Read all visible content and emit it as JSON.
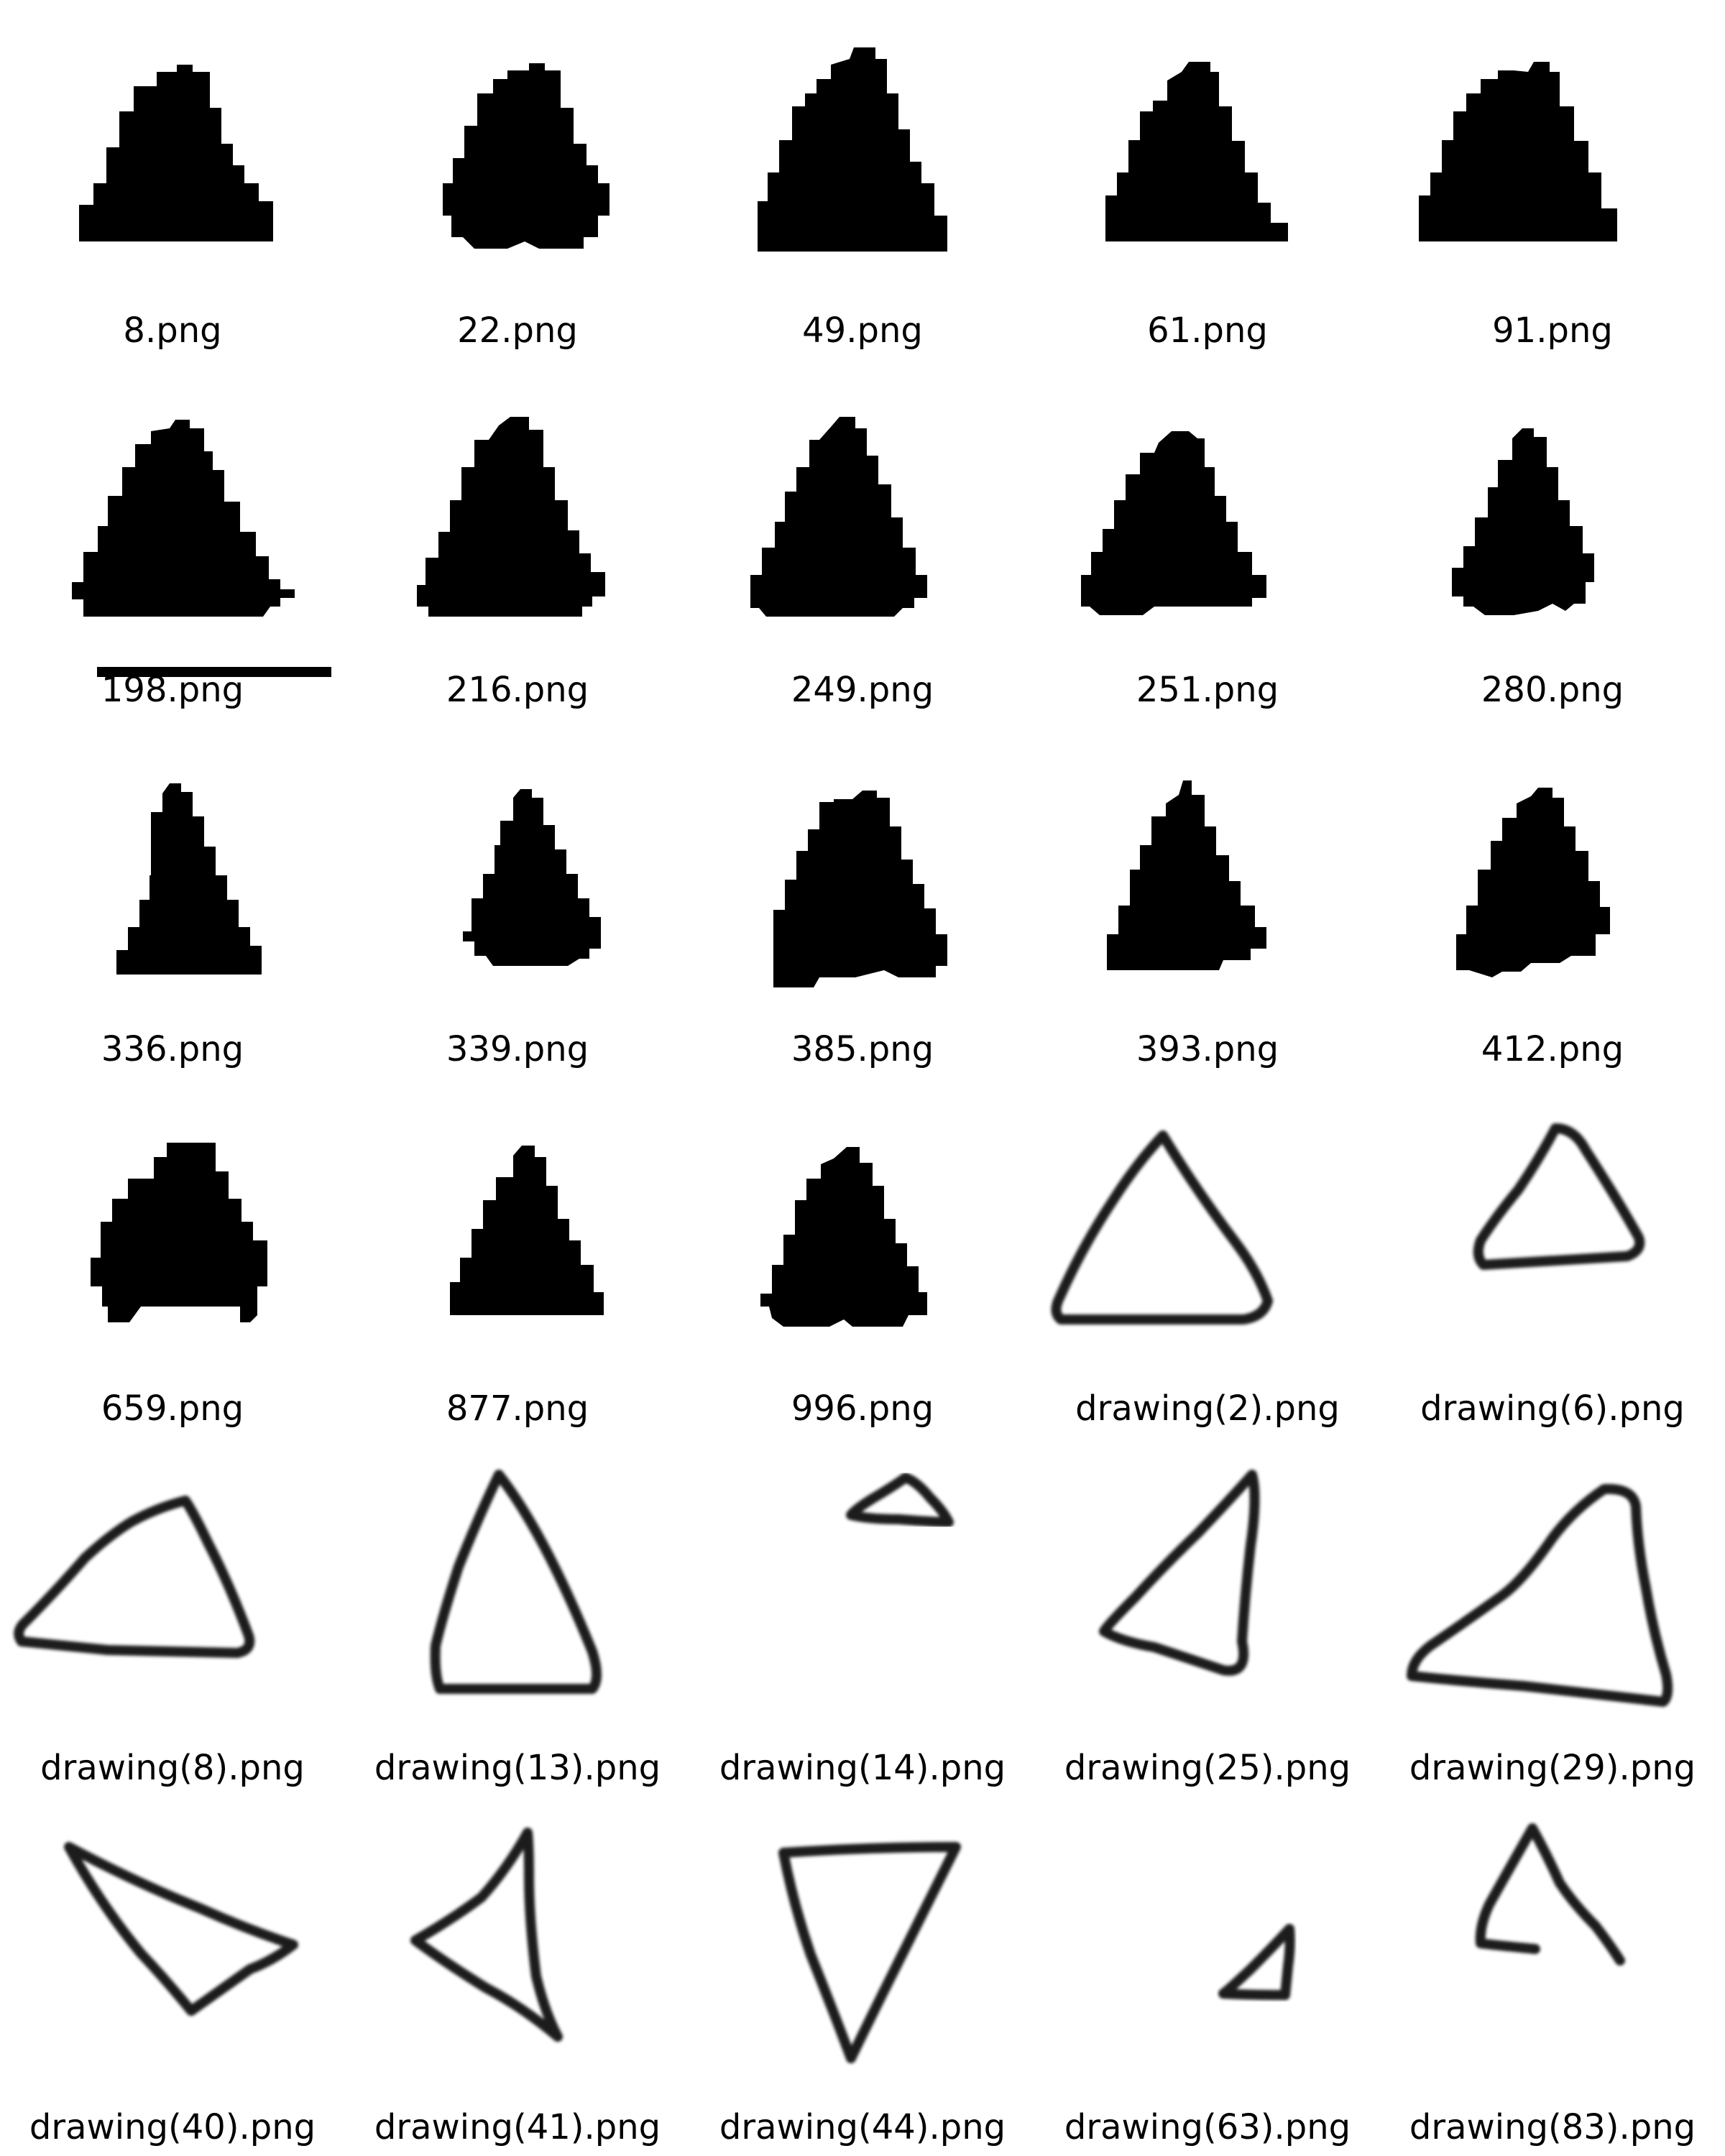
{
  "theme": {
    "background": "#ffffff",
    "shape_color": "#000000",
    "stroke_color": "#1a1a1a"
  },
  "thumbnails": [
    {
      "filename": "8.png",
      "icon": "filled-triangle-icon"
    },
    {
      "filename": "22.png",
      "icon": "filled-triangle-icon"
    },
    {
      "filename": "49.png",
      "icon": "filled-triangle-icon"
    },
    {
      "filename": "61.png",
      "icon": "filled-triangle-icon"
    },
    {
      "filename": "91.png",
      "icon": "filled-triangle-icon"
    },
    {
      "filename": "198.png",
      "icon": "filled-triangle-icon",
      "selected": true
    },
    {
      "filename": "216.png",
      "icon": "filled-triangle-icon"
    },
    {
      "filename": "249.png",
      "icon": "filled-triangle-icon"
    },
    {
      "filename": "251.png",
      "icon": "filled-triangle-icon"
    },
    {
      "filename": "280.png",
      "icon": "filled-triangle-icon"
    },
    {
      "filename": "336.png",
      "icon": "filled-triangle-icon"
    },
    {
      "filename": "339.png",
      "icon": "filled-triangle-icon"
    },
    {
      "filename": "385.png",
      "icon": "filled-triangle-icon"
    },
    {
      "filename": "393.png",
      "icon": "filled-triangle-icon"
    },
    {
      "filename": "412.png",
      "icon": "filled-triangle-icon"
    },
    {
      "filename": "659.png",
      "icon": "filled-triangle-icon"
    },
    {
      "filename": "877.png",
      "icon": "filled-triangle-icon"
    },
    {
      "filename": "996.png",
      "icon": "filled-triangle-icon"
    },
    {
      "filename": "drawing(2).png",
      "icon": "outline-triangle-icon"
    },
    {
      "filename": "drawing(6).png",
      "icon": "outline-triangle-icon"
    },
    {
      "filename": "drawing(8).png",
      "icon": "outline-triangle-icon"
    },
    {
      "filename": "drawing(13).png",
      "icon": "outline-triangle-icon"
    },
    {
      "filename": "drawing(14).png",
      "icon": "outline-triangle-icon"
    },
    {
      "filename": "drawing(25).png",
      "icon": "outline-triangle-icon"
    },
    {
      "filename": "drawing(29).png",
      "icon": "outline-triangle-icon"
    },
    {
      "filename": "drawing(40).png",
      "icon": "outline-triangle-icon"
    },
    {
      "filename": "drawing(41).png",
      "icon": "outline-triangle-icon"
    },
    {
      "filename": "drawing(44).png",
      "icon": "outline-triangle-icon"
    },
    {
      "filename": "drawing(63).png",
      "icon": "outline-triangle-icon"
    },
    {
      "filename": "drawing(83).png",
      "icon": "outline-triangle-icon"
    }
  ]
}
